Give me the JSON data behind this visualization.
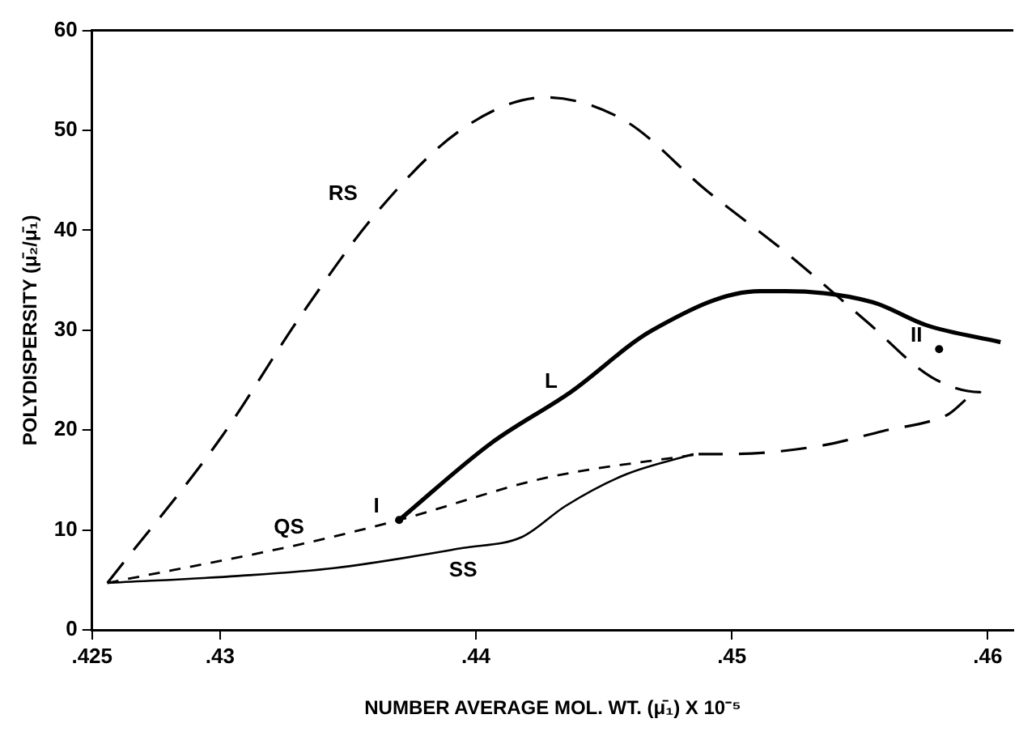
{
  "chart_data": {
    "type": "line",
    "xlabel": "NUMBER AVERAGE MOL. WT. (μ̄₁) X 10⁻⁵",
    "ylabel": "POLYDISPERSITY (μ̄₂/μ̄₁)",
    "xlim": [
      0.425,
      0.461
    ],
    "ylim": [
      0,
      60
    ],
    "xticks": [
      {
        "value": 0.425,
        "label": ".425"
      },
      {
        "value": 0.43,
        "label": ".43"
      },
      {
        "value": 0.44,
        "label": ".44"
      },
      {
        "value": 0.45,
        "label": ".45"
      },
      {
        "value": 0.46,
        "label": ".46"
      }
    ],
    "yticks": [
      0,
      10,
      20,
      30,
      40,
      50,
      60
    ],
    "grid": false,
    "legend": false,
    "marker": "none",
    "series": [
      {
        "name": "RS",
        "color": "#000000",
        "line_style": "dashed",
        "x": [
          0.4256,
          0.43,
          0.4332,
          0.4362,
          0.4395,
          0.4427,
          0.4458,
          0.449,
          0.4521,
          0.4553,
          0.4578,
          0.4597,
          0.4584,
          0.4559,
          0.4534,
          0.4499,
          0.4487
        ],
        "values": [
          4.7,
          19.1,
          31.6,
          42,
          50.2,
          53.3,
          51,
          44,
          37.8,
          30.8,
          25.3,
          23.8,
          21.5,
          19.9,
          18.4,
          17.6,
          17.6
        ]
      },
      {
        "name": "QS",
        "color": "#000000",
        "line_style": "dashed",
        "x": [
          0.4256,
          0.4332,
          0.437,
          0.4427,
          0.4487
        ],
        "values": [
          4.7,
          8.6,
          11,
          15.2,
          17.6
        ]
      },
      {
        "name": "SS",
        "color": "#000000",
        "line_style": "solid",
        "x": [
          0.4256,
          0.4307,
          0.4345,
          0.4395,
          0.4418,
          0.4435,
          0.4458,
          0.4485
        ],
        "values": [
          4.7,
          5.4,
          6.2,
          8.2,
          9.3,
          12.4,
          15.5,
          17.6
        ]
      },
      {
        "name": "L",
        "color": "#000000",
        "line_style": "solid",
        "x": [
          0.437,
          0.4406,
          0.4437,
          0.4469,
          0.4511,
          0.4521,
          0.4555,
          0.4576,
          0.4605
        ],
        "values": [
          11,
          18.7,
          23.8,
          30,
          33.9,
          33.9,
          32.8,
          30.5,
          28.8
        ]
      }
    ],
    "annotations": [
      {
        "text": "I",
        "x": 0.437,
        "y": 11
      },
      {
        "text": "II",
        "x": 0.4581,
        "y": 28.1
      }
    ]
  }
}
